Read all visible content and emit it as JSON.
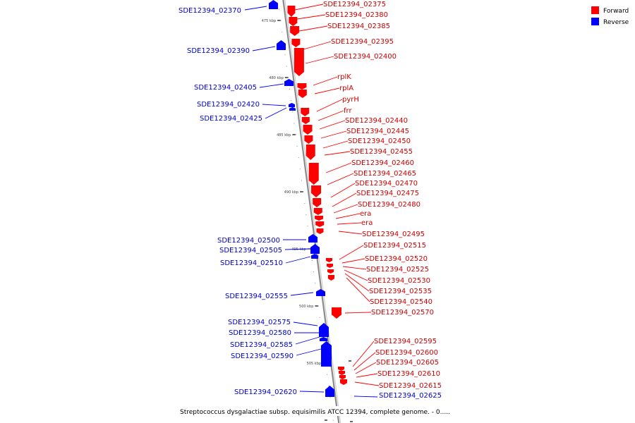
{
  "caption": "Streptococcus dysgalactiae subsp. equisimilis ATCC 12394, complete genome. - 0.....",
  "legend": [
    {
      "label": "Forward",
      "color": "#ff0000"
    },
    {
      "label": "Reverse",
      "color": "#0000ff"
    }
  ],
  "colors": {
    "forward": "#ff0000",
    "reverse": "#0000ff",
    "forward_text": "#cc0000",
    "reverse_text": "#0000cc",
    "axis": "#8a8a8a"
  },
  "ticks": [
    "475 kbp",
    "480 kbp",
    "485 kbp",
    "490 kbp",
    "495 kbp",
    "500 kbp",
    "505 kbp"
  ],
  "forward_genes": [
    "SDE12394_02375",
    "SDE12394_02380",
    "SDE12394_02385",
    "SDE12394_02395",
    "SDE12394_02400",
    "rplK",
    "rplA",
    "pyrH",
    "frr",
    "SDE12394_02440",
    "SDE12394_02445",
    "SDE12394_02450",
    "SDE12394_02455",
    "SDE12394_02460",
    "SDE12394_02465",
    "SDE12394_02470",
    "SDE12394_02475",
    "SDE12394_02480",
    "era",
    "era",
    "SDE12394_02495",
    "SDE12394_02515",
    "SDE12394_02520",
    "SDE12394_02525",
    "SDE12394_02530",
    "SDE12394_02535",
    "SDE12394_02540",
    "SDE12394_02570",
    "SDE12394_02595",
    "SDE12394_02600",
    "SDE12394_02605",
    "SDE12394_02610",
    "SDE12394_02615"
  ],
  "reverse_genes": [
    "SDE12394_02370",
    "SDE12394_02390",
    "SDE12394_02405",
    "SDE12394_02420",
    "SDE12394_02425",
    "SDE12394_02500",
    "SDE12394_02505",
    "SDE12394_02510",
    "SDE12394_02555",
    "SDE12394_02575",
    "SDE12394_02580",
    "SDE12394_02585",
    "SDE12394_02590",
    "SDE12394_02620",
    "SDE12394_02625"
  ]
}
